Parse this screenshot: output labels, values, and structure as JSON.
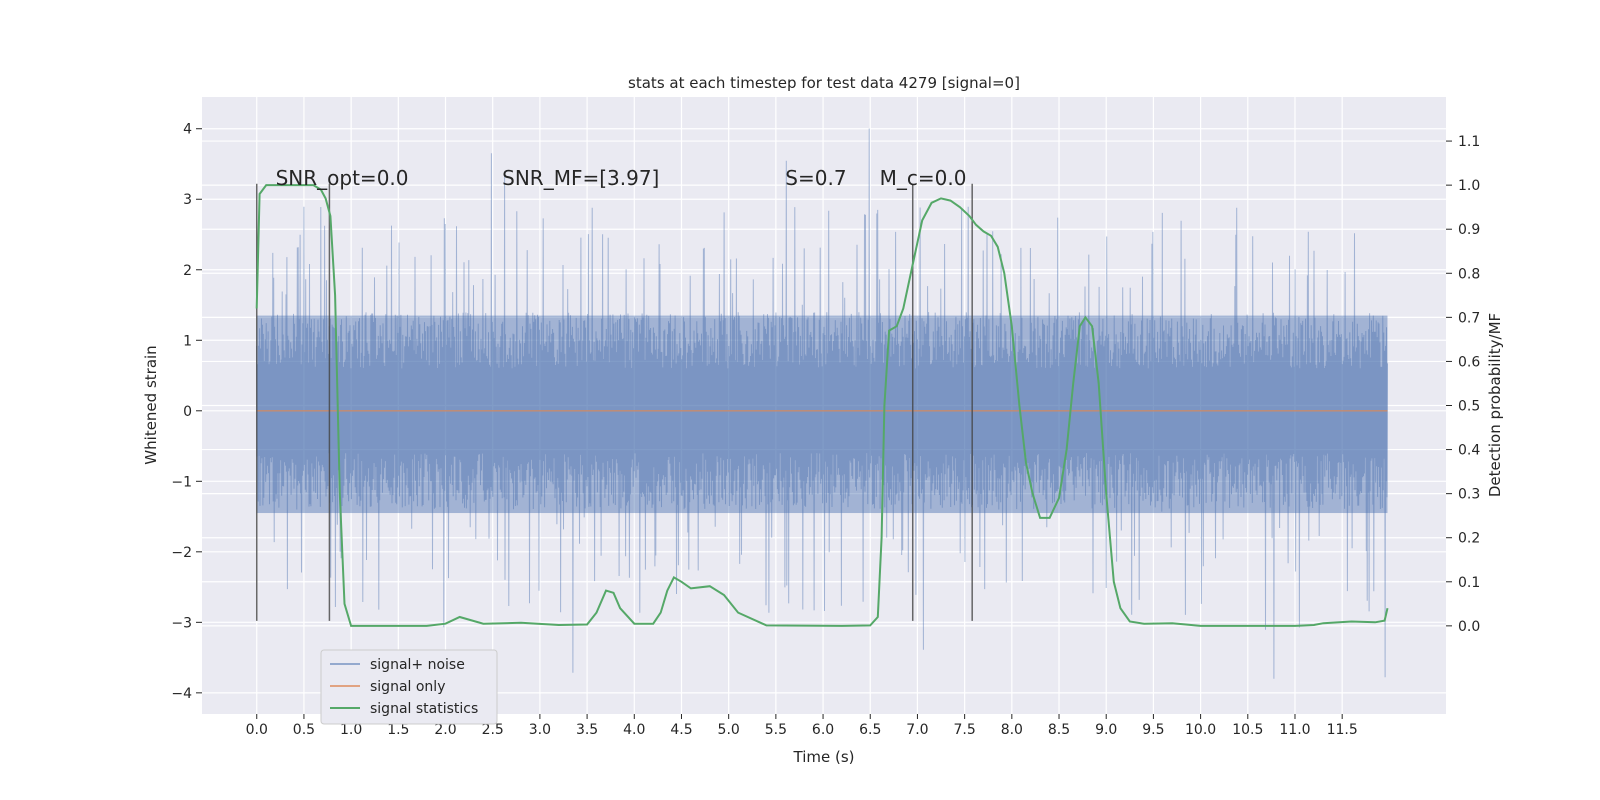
{
  "chart_data": {
    "type": "line",
    "title": "stats at each timestep for test data 4279 [signal=0]",
    "xlabel": "Time (s)",
    "ylabel": "Whitened strain",
    "y2label": "Detection probability/MF",
    "xlim": [
      -0.58,
      12.6
    ],
    "ylim": [
      -4.3,
      4.45
    ],
    "y2lim": [
      -0.2,
      1.2
    ],
    "xticks": [
      0.0,
      0.5,
      1.0,
      1.5,
      2.0,
      2.5,
      3.0,
      3.5,
      4.0,
      4.5,
      5.0,
      5.5,
      6.0,
      6.5,
      7.0,
      7.5,
      8.0,
      8.5,
      9.0,
      9.5,
      10.0,
      10.5,
      11.0,
      11.5
    ],
    "xtick_labels": [
      "0.0",
      "0.5",
      "1.0",
      "1.5",
      "2.0",
      "2.5",
      "3.0",
      "3.5",
      "4.0",
      "4.5",
      "5.0",
      "5.5",
      "6.0",
      "6.5",
      "7.0",
      "7.5",
      "8.0",
      "8.5",
      "9.0",
      "9.5",
      "10.0",
      "10.5",
      "11.0",
      "11.5"
    ],
    "yticks": [
      -4,
      -3,
      -2,
      -1,
      0,
      1,
      2,
      3,
      4
    ],
    "ytick_labels": [
      "−4",
      "−3",
      "−2",
      "−1",
      "0",
      "1",
      "2",
      "3",
      "4"
    ],
    "y2ticks": [
      0.0,
      0.1,
      0.2,
      0.3,
      0.4,
      0.5,
      0.6,
      0.7,
      0.8,
      0.9,
      1.0,
      1.1
    ],
    "y2tick_labels": [
      "0.0",
      "0.1",
      "0.2",
      "0.3",
      "0.4",
      "0.5",
      "0.6",
      "0.7",
      "0.8",
      "0.9",
      "1.0",
      "1.1"
    ],
    "grid": true,
    "legend_position": "bottom-left",
    "annotations": [
      {
        "text": "SNR_opt=0.0",
        "x": 0.2
      },
      {
        "text": "SNR_MF=[3.97]",
        "x": 2.6
      },
      {
        "text": "S=0.7",
        "x": 5.6
      },
      {
        "text": "M_c=0.0",
        "x": 6.6
      }
    ],
    "vertical_markers": [
      0.0,
      0.77,
      6.95,
      7.58
    ],
    "series": [
      {
        "name": "signal+ noise",
        "color": "#4c72b0",
        "axis": "left",
        "x_range": [
          0.0,
          11.98
        ],
        "typical_range": [
          -1.5,
          1.4
        ],
        "max": 4.1,
        "min": -3.8
      },
      {
        "name": "signal only",
        "color": "#dd8452",
        "axis": "left",
        "x": [
          0.0,
          11.98
        ],
        "y": [
          0.0,
          0.0
        ]
      },
      {
        "name": "signal statistics",
        "color": "#55a868",
        "axis": "right",
        "x": [
          0.0,
          0.03,
          0.1,
          0.2,
          0.3,
          0.5,
          0.6,
          0.68,
          0.73,
          0.78,
          0.83,
          0.88,
          0.93,
          1.0,
          1.2,
          1.8,
          2.0,
          2.15,
          2.4,
          2.8,
          3.2,
          3.5,
          3.6,
          3.7,
          3.78,
          3.85,
          4.0,
          4.2,
          4.28,
          4.35,
          4.42,
          4.5,
          4.6,
          4.8,
          4.95,
          5.1,
          5.4,
          6.2,
          6.5,
          6.58,
          6.62,
          6.65,
          6.7,
          6.78,
          6.85,
          6.95,
          7.05,
          7.15,
          7.25,
          7.35,
          7.45,
          7.55,
          7.62,
          7.7,
          7.78,
          7.85,
          7.92,
          8.0,
          8.08,
          8.15,
          8.22,
          8.3,
          8.4,
          8.5,
          8.58,
          8.65,
          8.72,
          8.78,
          8.85,
          8.92,
          9.0,
          9.08,
          9.15,
          9.25,
          9.4,
          9.7,
          10.0,
          11.0,
          11.2,
          11.3,
          11.6,
          11.85,
          11.95,
          11.98
        ],
        "y": [
          0.72,
          0.98,
          1.0,
          1.0,
          1.0,
          1.0,
          1.0,
          0.99,
          0.97,
          0.93,
          0.75,
          0.3,
          0.05,
          0.0,
          0.0,
          0.0,
          0.005,
          0.02,
          0.005,
          0.007,
          0.002,
          0.003,
          0.03,
          0.08,
          0.075,
          0.04,
          0.005,
          0.005,
          0.03,
          0.08,
          0.11,
          0.1,
          0.085,
          0.09,
          0.07,
          0.03,
          0.001,
          0.0,
          0.001,
          0.02,
          0.2,
          0.5,
          0.67,
          0.68,
          0.72,
          0.82,
          0.92,
          0.96,
          0.97,
          0.965,
          0.95,
          0.93,
          0.91,
          0.895,
          0.885,
          0.86,
          0.8,
          0.68,
          0.5,
          0.37,
          0.3,
          0.245,
          0.245,
          0.29,
          0.4,
          0.55,
          0.68,
          0.7,
          0.68,
          0.55,
          0.3,
          0.1,
          0.04,
          0.01,
          0.005,
          0.006,
          0.0,
          0.0,
          0.002,
          0.006,
          0.01,
          0.008,
          0.012,
          0.04
        ]
      }
    ]
  }
}
